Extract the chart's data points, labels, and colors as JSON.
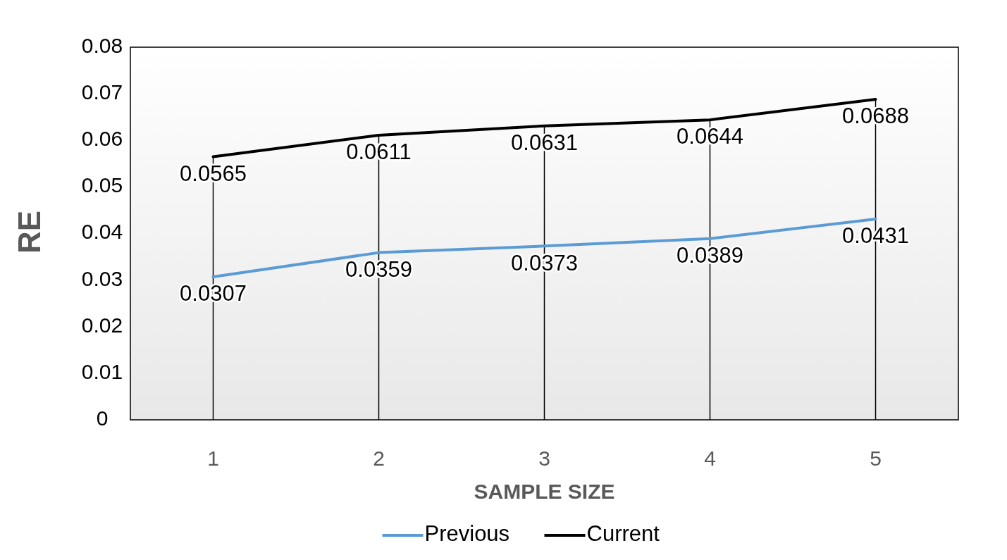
{
  "chart_data": {
    "type": "line",
    "xlabel": "SAMPLE SIZE",
    "ylabel": "RE",
    "categories": [
      "1",
      "2",
      "3",
      "4",
      "5"
    ],
    "series": [
      {
        "name": "Previous",
        "color": "#5b9bd5",
        "values": [
          0.0307,
          0.0359,
          0.0373,
          0.0389,
          0.0431
        ]
      },
      {
        "name": "Current",
        "color": "#000000",
        "values": [
          0.0565,
          0.0611,
          0.0631,
          0.0644,
          0.0688
        ]
      }
    ],
    "ylim": [
      0,
      0.08
    ],
    "yticks": [
      0,
      0.01,
      0.02,
      0.03,
      0.04,
      0.05,
      0.06,
      0.07,
      0.08
    ],
    "grid": "x",
    "data_labels": true,
    "legend": "bottom",
    "marker": "none",
    "line_style": "solid"
  }
}
